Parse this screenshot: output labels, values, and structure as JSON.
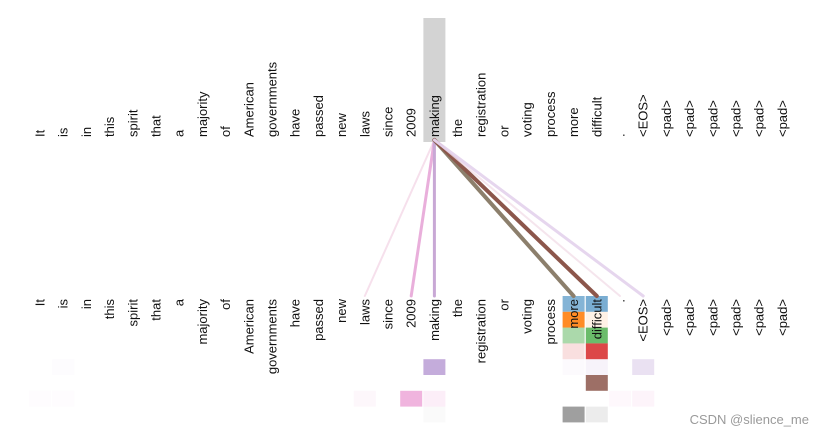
{
  "tokens": [
    "It",
    "is",
    "in",
    "this",
    "spirit",
    "that",
    "a",
    "majority",
    "of",
    "American",
    "governments",
    "have",
    "passed",
    "new",
    "laws",
    "since",
    "2009",
    "making",
    "the",
    "registration",
    "or",
    "voting",
    "process",
    "more",
    "difficult",
    ".",
    "<EOS>",
    "<pad>",
    "<pad>",
    "<pad>",
    "<pad>",
    "<pad>",
    "<pad>"
  ],
  "selected_index": 17,
  "connections": [
    {
      "to": 14,
      "color": "#f2d3e4",
      "opacity": 0.7,
      "weight": 2
    },
    {
      "to": 16,
      "color": "#e7a6d7",
      "opacity": 0.9,
      "weight": 3
    },
    {
      "to": 17,
      "color": "#c8a8d5",
      "opacity": 1.0,
      "weight": 3
    },
    {
      "to": 23,
      "color": "#8c7f6c",
      "opacity": 1.0,
      "weight": 4
    },
    {
      "to": 24,
      "color": "#8c564b",
      "opacity": 1.0,
      "weight": 4
    },
    {
      "to": 25,
      "color": "#f3dfe8",
      "opacity": 0.8,
      "weight": 2
    },
    {
      "to": 26,
      "color": "#e3d2ec",
      "opacity": 0.9,
      "weight": 3
    }
  ],
  "heads": [
    {
      "color": "#1f77b4"
    },
    {
      "color": "#ff7f0e"
    },
    {
      "color": "#2ca02c"
    },
    {
      "color": "#d62728"
    },
    {
      "color": "#9467bd"
    },
    {
      "color": "#8c564b"
    },
    {
      "color": "#e377c2"
    },
    {
      "color": "#7f7f7f"
    }
  ],
  "head_weights": [
    [
      {
        "i": 23,
        "a": 0.55
      },
      {
        "i": 24,
        "a": 0.6
      }
    ],
    [
      {
        "i": 23,
        "a": 0.9
      },
      {
        "i": 24,
        "a": 0.1
      }
    ],
    [
      {
        "i": 23,
        "a": 0.4
      },
      {
        "i": 24,
        "a": 0.7
      }
    ],
    [
      {
        "i": 23,
        "a": 0.15
      },
      {
        "i": 24,
        "a": 0.85
      }
    ],
    [
      {
        "i": 1,
        "a": 0.02
      },
      {
        "i": 17,
        "a": 0.55
      },
      {
        "i": 23,
        "a": 0.03
      },
      {
        "i": 24,
        "a": 0.08
      },
      {
        "i": 26,
        "a": 0.2
      }
    ],
    [
      {
        "i": 24,
        "a": 0.85
      }
    ],
    [
      {
        "i": 0,
        "a": 0.02
      },
      {
        "i": 1,
        "a": 0.02
      },
      {
        "i": 14,
        "a": 0.06
      },
      {
        "i": 16,
        "a": 0.55
      },
      {
        "i": 17,
        "a": 0.12
      },
      {
        "i": 25,
        "a": 0.05
      },
      {
        "i": 26,
        "a": 0.08
      }
    ],
    [
      {
        "i": 17,
        "a": 0.04
      },
      {
        "i": 23,
        "a": 0.75
      },
      {
        "i": 24,
        "a": 0.15
      }
    ]
  ],
  "watermark": "CSDN @slience_me"
}
